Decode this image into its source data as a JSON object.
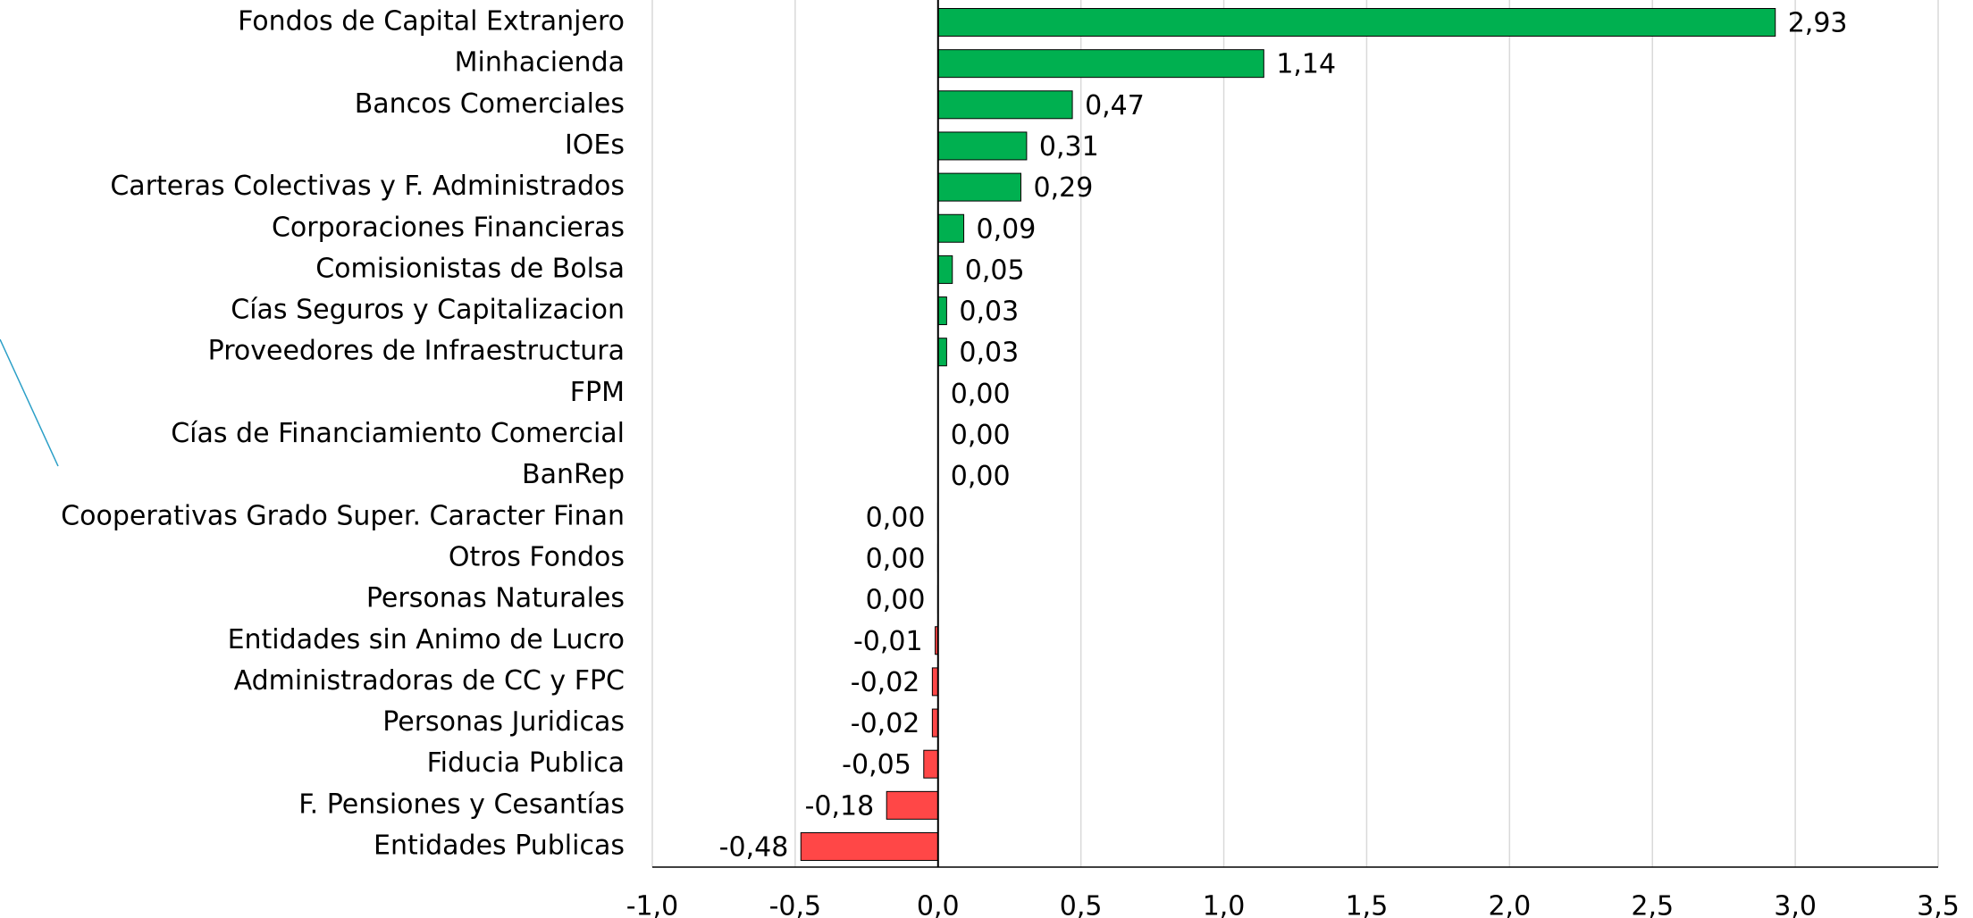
{
  "chart_data": {
    "type": "hbar",
    "categories": [
      "Fondos de Capital Extranjero",
      "Minhacienda",
      "Bancos Comerciales",
      "IOEs",
      "Carteras Colectivas y F. Administrados",
      "Corporaciones Financieras",
      "Comisionistas de Bolsa",
      "Cías Seguros y Capitalizacion",
      "Proveedores de Infraestructura",
      "FPM",
      "Cías de Financiamiento Comercial",
      "BanRep",
      "Cooperativas Grado Super. Caracter Finan",
      "Otros Fondos",
      "Personas Naturales",
      "Entidades sin Animo de Lucro",
      "Administradoras de CC y FPC",
      "Personas Juridicas",
      "Fiducia Publica",
      "F. Pensiones y Cesantías",
      "Entidades Publicas"
    ],
    "values": [
      2.93,
      1.14,
      0.47,
      0.31,
      0.29,
      0.09,
      0.05,
      0.03,
      0.03,
      0,
      0,
      0,
      -0.001,
      -0.001,
      -0.001,
      -0.01,
      -0.02,
      -0.02,
      -0.05,
      -0.18,
      -0.48
    ],
    "value_labels": [
      "2,93",
      "1,14",
      "0,47",
      "0,31",
      "0,29",
      "0,09",
      "0,05",
      "0,03",
      "0,03",
      "0,00",
      "0,00",
      "0,00",
      "0,00",
      "0,00",
      "0,00",
      "-0,01",
      "-0,02",
      "-0,02",
      "-0,05",
      "-0,18",
      "-0,48"
    ],
    "colors": {
      "positive": "#00b050",
      "negative": "#ff4747"
    },
    "xlim": [
      -1,
      3.5
    ],
    "xticks": [
      {
        "value": -1,
        "label": "-1,0"
      },
      {
        "value": -0.5,
        "label": "-0,5"
      },
      {
        "value": 0,
        "label": "0,0"
      },
      {
        "value": 0.5,
        "label": "0,5"
      },
      {
        "value": 1,
        "label": "1,0"
      },
      {
        "value": 1.5,
        "label": "1,5"
      },
      {
        "value": 2,
        "label": "2,0"
      },
      {
        "value": 2.5,
        "label": "2,5"
      },
      {
        "value": 3,
        "label": "3,0"
      },
      {
        "value": 3.5,
        "label": "3,5"
      }
    ],
    "grid": true
  }
}
